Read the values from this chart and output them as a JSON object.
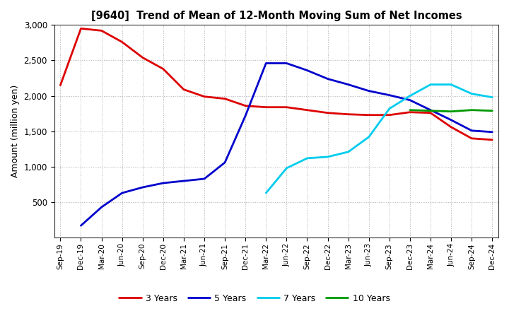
{
  "title": "[9640]  Trend of Mean of 12-Month Moving Sum of Net Incomes",
  "ylabel": "Amount (million yen)",
  "background_color": "#ffffff",
  "grid_color": "#b0b0b0",
  "ylim": [
    0,
    3000
  ],
  "yticks": [
    500,
    1000,
    1500,
    2000,
    2500,
    3000
  ],
  "x_labels": [
    "Sep-19",
    "Dec-19",
    "Mar-20",
    "Jun-20",
    "Sep-20",
    "Dec-20",
    "Mar-21",
    "Jun-21",
    "Sep-21",
    "Dec-21",
    "Mar-22",
    "Jun-22",
    "Sep-22",
    "Dec-22",
    "Mar-23",
    "Jun-23",
    "Sep-23",
    "Dec-23",
    "Mar-24",
    "Jun-24",
    "Sep-24",
    "Dec-24"
  ],
  "series": {
    "3 Years": {
      "color": "#dd0000",
      "data_x": [
        0,
        1,
        2,
        3,
        4,
        5,
        6,
        7,
        8,
        9,
        10,
        11,
        12,
        13,
        14,
        15,
        16,
        17,
        18,
        19,
        20,
        21
      ],
      "data_y": [
        2150,
        2950,
        2920,
        2760,
        2540,
        2380,
        2090,
        1990,
        1960,
        1860,
        1840,
        1840,
        1800,
        1760,
        1740,
        1730,
        1730,
        1770,
        1760,
        1560,
        1400,
        1380
      ]
    },
    "5 Years": {
      "color": "#0000cc",
      "data_x": [
        1,
        2,
        3,
        4,
        5,
        6,
        7,
        8,
        9,
        10,
        11,
        12,
        13,
        14,
        15,
        16,
        17,
        18,
        19,
        20,
        21
      ],
      "data_y": [
        170,
        430,
        630,
        710,
        770,
        800,
        830,
        1060,
        1720,
        2460,
        2460,
        2360,
        2240,
        2160,
        2070,
        2010,
        1940,
        1800,
        1660,
        1510,
        1490
      ]
    },
    "7 Years": {
      "color": "#00ccee",
      "data_x": [
        10,
        11,
        12,
        13,
        14,
        15,
        16,
        17,
        18,
        19,
        20,
        21
      ],
      "data_y": [
        630,
        980,
        1120,
        1140,
        1210,
        1420,
        1820,
        2000,
        2160,
        2160,
        2030,
        1980
      ]
    },
    "10 Years": {
      "color": "#009900",
      "data_x": [
        17,
        18,
        19,
        20,
        21
      ],
      "data_y": [
        1800,
        1790,
        1780,
        1800,
        1790
      ]
    }
  },
  "legend_order": [
    "3 Years",
    "5 Years",
    "7 Years",
    "10 Years"
  ]
}
